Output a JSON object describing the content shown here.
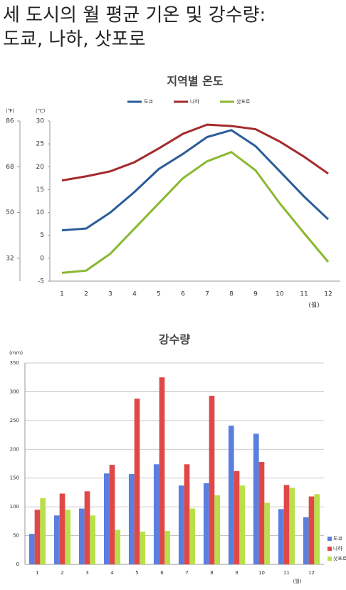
{
  "title": [
    "세 도시의 월 평균 기온 및 강수량:",
    "도쿄, 나하, 삿포로"
  ],
  "chart_data": [
    {
      "type": "line",
      "title": "지역별 온도",
      "categories": [
        "1",
        "2",
        "3",
        "4",
        "5",
        "6",
        "7",
        "8",
        "9",
        "10",
        "11",
        "12"
      ],
      "xlabel": "(월)",
      "ylabel": "(℃)",
      "y2label": "(℉)",
      "ylim": [
        -5,
        30
      ],
      "yticks": [
        -5,
        0,
        5,
        10,
        15,
        20,
        25,
        30
      ],
      "y2lim": [
        23,
        86
      ],
      "y2ticks": [
        32,
        50,
        68,
        86
      ],
      "grid": false,
      "legend": "top",
      "series": [
        {
          "name": "도쿄",
          "color": "#2a5c9a",
          "values": [
            6.1,
            6.5,
            10,
            14.5,
            19.5,
            22.8,
            26.5,
            28,
            24.5,
            19,
            13.5,
            8.5
          ]
        },
        {
          "name": "나하",
          "color": "#a52a2a",
          "values": [
            17,
            17.9,
            19,
            21,
            24,
            27.2,
            29.2,
            28.9,
            28.2,
            25.5,
            22.2,
            18.5
          ]
        },
        {
          "name": "삿포로",
          "color": "#8ab832",
          "values": [
            -3.2,
            -2.7,
            1,
            6.5,
            12,
            17.5,
            21.2,
            23.2,
            19.2,
            12,
            5.5,
            -0.8
          ]
        }
      ]
    },
    {
      "type": "bar",
      "title": "강수량",
      "categories": [
        "1",
        "2",
        "3",
        "4",
        "5",
        "6",
        "7",
        "8",
        "9",
        "10",
        "11",
        "12"
      ],
      "xlabel": "(월)",
      "ylabel": "(mm)",
      "ylim": [
        0,
        350
      ],
      "yticks": [
        0,
        50,
        100,
        150,
        200,
        250,
        300,
        350
      ],
      "grid": true,
      "legend": "bottom-right",
      "series": [
        {
          "name": "도쿄",
          "color": "#5b7fe0",
          "values": [
            53,
            85,
            97,
            158,
            157,
            174,
            137,
            141,
            241,
            227,
            96,
            82
          ]
        },
        {
          "name": "나하",
          "color": "#e04848",
          "values": [
            95,
            123,
            127,
            173,
            288,
            325,
            174,
            293,
            162,
            178,
            138,
            118
          ]
        },
        {
          "name": "삿포로",
          "color": "#b8e04a",
          "values": [
            115,
            95,
            85,
            60,
            57,
            58,
            97,
            120,
            137,
            107,
            133,
            122
          ]
        }
      ]
    }
  ]
}
